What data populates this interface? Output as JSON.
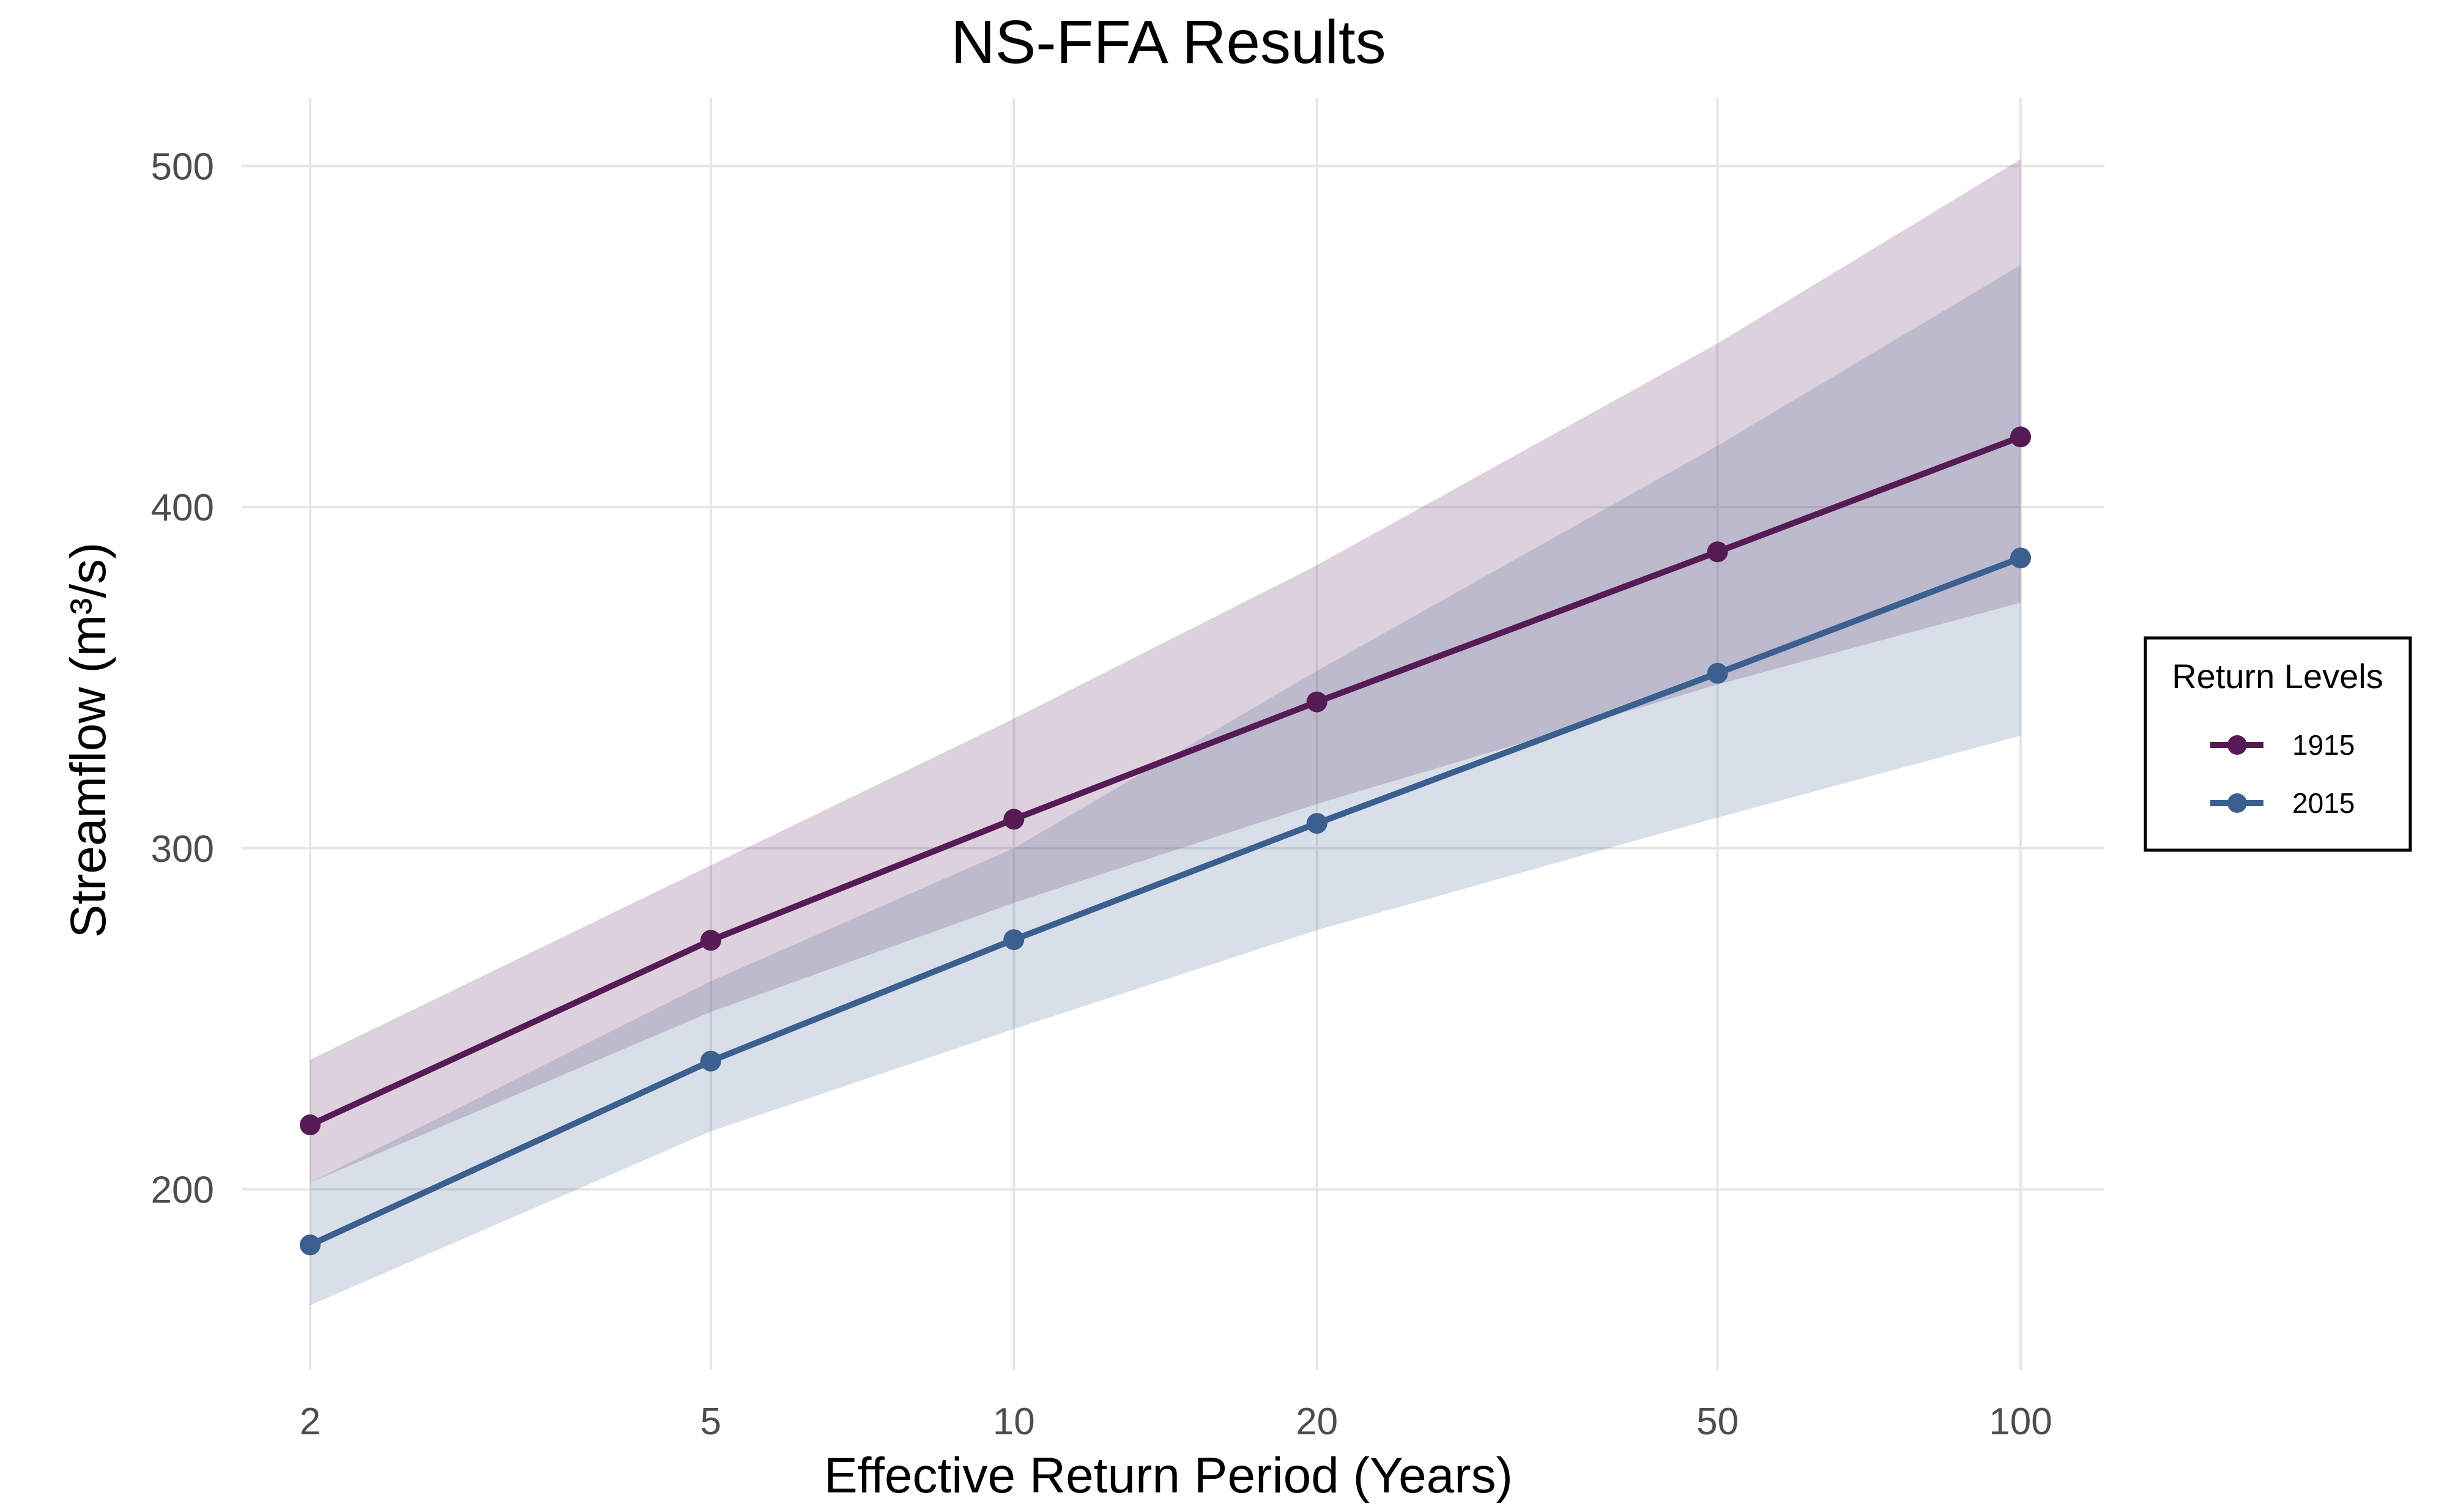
{
  "chart_data": {
    "type": "line",
    "title": "NS-FFA Results",
    "xlabel": "Effective Return Period (Years)",
    "ylabel": "Streamflow (m³/s)",
    "x_scale": "log",
    "x": [
      2,
      5,
      10,
      20,
      50,
      100
    ],
    "x_tick_labels": [
      "2",
      "5",
      "10",
      "20",
      "50",
      "100"
    ],
    "y_ticks": [
      200,
      300,
      400,
      500
    ],
    "y_tick_labels": [
      "200",
      "300",
      "400",
      "500"
    ],
    "ylim": [
      147,
      520
    ],
    "grid": true,
    "legend_title": "Return Levels",
    "legend_position": "right",
    "series": [
      {
        "name": "1915",
        "color": "#561A55",
        "band_color": "#561A55",
        "values": [
          218.9,
          273.0,
          308.5,
          342.9,
          386.9,
          420.6
        ],
        "lower": [
          202,
          252,
          284,
          313,
          348,
          372
        ],
        "upper": [
          238,
          295,
          338,
          383,
          448,
          502
        ]
      },
      {
        "name": "2015",
        "color": "#3B5F8E",
        "band_color": "#3B5F8E",
        "values": [
          183.7,
          237.6,
          273.2,
          307.3,
          351.3,
          385.1
        ],
        "lower": [
          166,
          217,
          247,
          276,
          309,
          333
        ],
        "upper": [
          202,
          261,
          300,
          352,
          418,
          471
        ]
      }
    ]
  }
}
